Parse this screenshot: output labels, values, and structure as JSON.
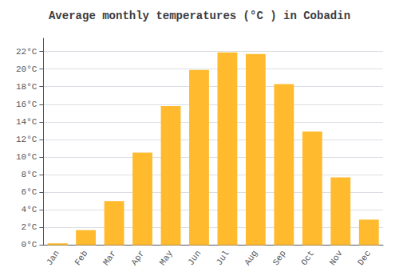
{
  "chart_data": {
    "type": "bar",
    "title": "Average monthly temperatures (°C ) in Cobadin",
    "categories": [
      "Jan",
      "Feb",
      "Mar",
      "Apr",
      "May",
      "Jun",
      "Jul",
      "Aug",
      "Sep",
      "Oct",
      "Nov",
      "Dec"
    ],
    "values": [
      0.2,
      1.7,
      5.0,
      10.5,
      15.8,
      19.9,
      21.9,
      21.7,
      18.3,
      12.9,
      7.7,
      2.9
    ],
    "color": "#FFBA2E",
    "ylim": [
      0,
      23.5
    ],
    "yticks": [
      {
        "value": 0,
        "label": "0°C"
      },
      {
        "value": 2,
        "label": "2°C"
      },
      {
        "value": 4,
        "label": "4°C"
      },
      {
        "value": 6,
        "label": "6°C"
      },
      {
        "value": 8,
        "label": "8°C"
      },
      {
        "value": 10,
        "label": "10°C"
      },
      {
        "value": 12,
        "label": "12°C"
      },
      {
        "value": 14,
        "label": "14°C"
      },
      {
        "value": 16,
        "label": "16°C"
      },
      {
        "value": 18,
        "label": "18°C"
      },
      {
        "value": 20,
        "label": "20°C"
      },
      {
        "value": 22,
        "label": "22°C"
      }
    ],
    "grid": true
  }
}
